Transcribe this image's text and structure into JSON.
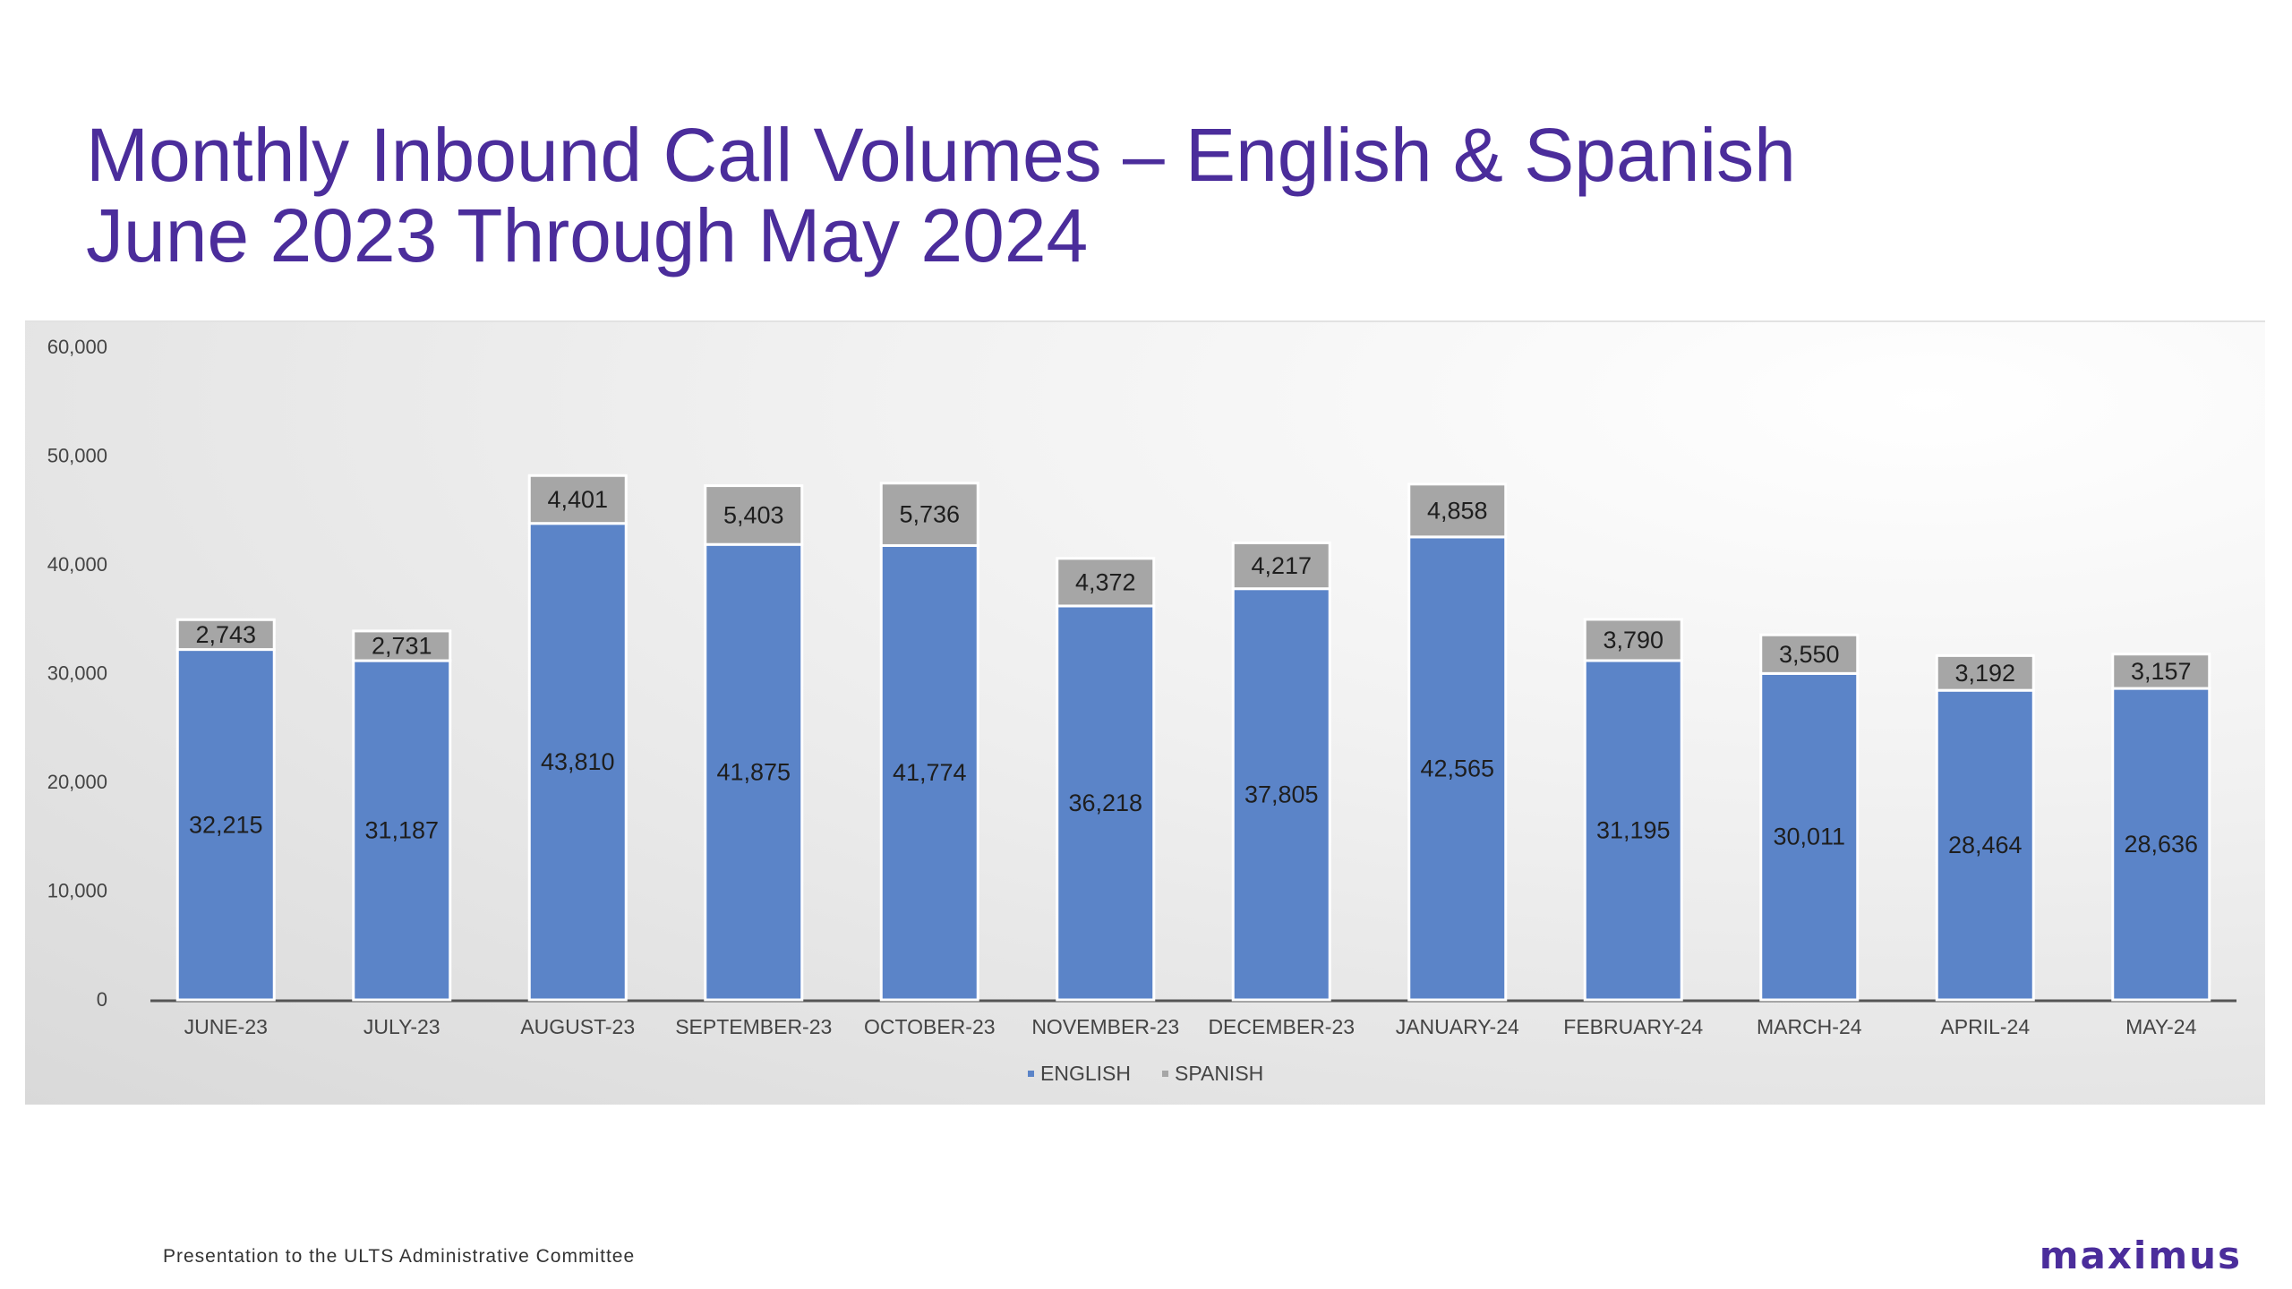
{
  "slide": {
    "title_line1": "Monthly Inbound Call Volumes – English & Spanish",
    "title_line2": "June 2023 Through May 2024",
    "footer_text": "Presentation to the ULTS Administrative Committee",
    "logo_text": "maximus"
  },
  "colors": {
    "title": "#4b2d9b",
    "english": "#5b84c8",
    "spanish": "#a6a6a6"
  },
  "chart_data": {
    "type": "bar",
    "stacked": true,
    "title": "",
    "xlabel": "",
    "ylabel": "",
    "ylim": [
      0,
      60000
    ],
    "yticks": [
      0,
      10000,
      20000,
      30000,
      40000,
      50000,
      60000
    ],
    "ytick_labels": [
      "0",
      "10,000",
      "20,000",
      "30,000",
      "40,000",
      "50,000",
      "60,000"
    ],
    "grid": false,
    "legend_position": "bottom",
    "categories": [
      "JUNE-23",
      "JULY-23",
      "AUGUST-23",
      "SEPTEMBER-23",
      "OCTOBER-23",
      "NOVEMBER-23",
      "DECEMBER-23",
      "JANUARY-24",
      "FEBRUARY-24",
      "MARCH-24",
      "APRIL-24",
      "MAY-24"
    ],
    "series": [
      {
        "name": "ENGLISH",
        "color": "#5b84c8",
        "values": [
          32215,
          31187,
          43810,
          41875,
          41774,
          36218,
          37805,
          42565,
          31195,
          30011,
          28464,
          28636
        ],
        "labels": [
          "32,215",
          "31,187",
          "43,810",
          "41,875",
          "41,774",
          "36,218",
          "37,805",
          "42,565",
          "31,195",
          "30,011",
          "28,464",
          "28,636"
        ]
      },
      {
        "name": "SPANISH",
        "color": "#a6a6a6",
        "values": [
          2743,
          2731,
          4401,
          5403,
          5736,
          4372,
          4217,
          4858,
          3790,
          3550,
          3192,
          3157
        ],
        "labels": [
          "2,743",
          "2,731",
          "4,401",
          "5,403",
          "5,736",
          "4,372",
          "4,217",
          "4,858",
          "3,790",
          "3,550",
          "3,192",
          "3,157"
        ]
      }
    ]
  }
}
